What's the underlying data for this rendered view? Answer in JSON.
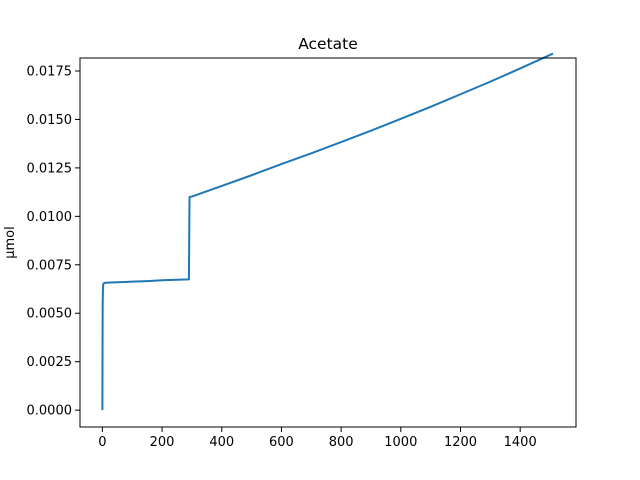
{
  "chart_data": {
    "type": "line",
    "title": "Acetate",
    "xlabel": "",
    "ylabel": "µmol",
    "xlim": [
      -75,
      1587
    ],
    "ylim": [
      -0.00087,
      0.01817
    ],
    "x_ticks": [
      0,
      200,
      400,
      600,
      800,
      1000,
      1200,
      1400
    ],
    "y_ticks": [
      0.0,
      0.0025,
      0.005,
      0.0075,
      0.01,
      0.0125,
      0.015,
      0.0175
    ],
    "x_tick_labels": [
      "0",
      "200",
      "400",
      "600",
      "800",
      "1000",
      "1200",
      "1400"
    ],
    "y_tick_labels": [
      "0.0000",
      "0.0025",
      "0.0050",
      "0.0075",
      "0.0100",
      "0.0125",
      "0.0150",
      "0.0175"
    ],
    "grid": false,
    "line_color": "#1f77b4",
    "series": [
      {
        "x": [
          0,
          0.5,
          1,
          2,
          3,
          5,
          10,
          20,
          50,
          100,
          150,
          200,
          250,
          290,
          291,
          292,
          300,
          400,
          500,
          600,
          700,
          800,
          900,
          1000,
          1100,
          1200,
          1300,
          1400,
          1510
        ],
        "y": [
          0.0,
          0.003,
          0.0055,
          0.0063,
          0.0065,
          0.00655,
          0.00657,
          0.00658,
          0.0066,
          0.00663,
          0.00666,
          0.0067,
          0.00673,
          0.00675,
          0.009,
          0.011,
          0.01102,
          0.01157,
          0.01212,
          0.0127,
          0.01325,
          0.01383,
          0.01442,
          0.01503,
          0.01565,
          0.0163,
          0.01695,
          0.01763,
          0.0184
        ]
      }
    ]
  }
}
